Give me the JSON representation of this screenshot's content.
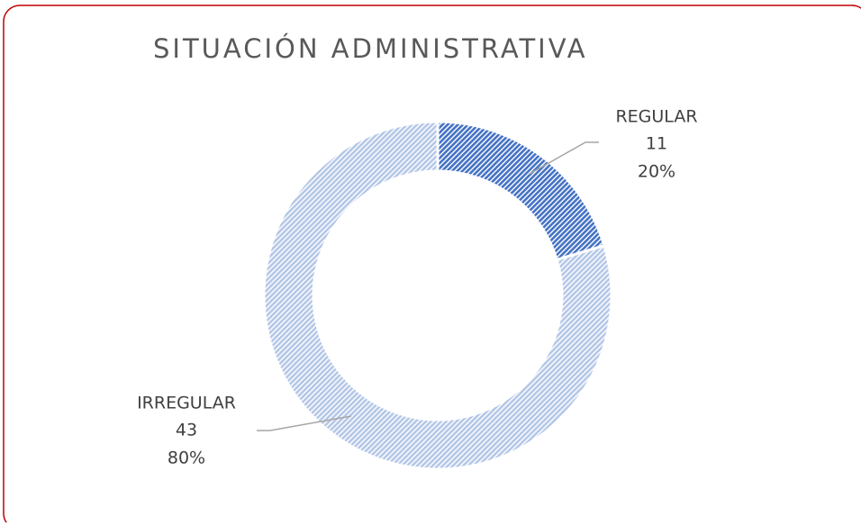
{
  "chart_data": {
    "type": "donut",
    "title": "SITUACIÓN ADMINISTRATIVA",
    "categories": [
      "REGULAR",
      "IRREGULAR"
    ],
    "values": [
      11,
      43
    ],
    "percents": [
      20,
      80
    ],
    "percent_labels": [
      "20%",
      "80%"
    ],
    "colors": [
      "#4472c4",
      "#b4c7e7"
    ]
  }
}
